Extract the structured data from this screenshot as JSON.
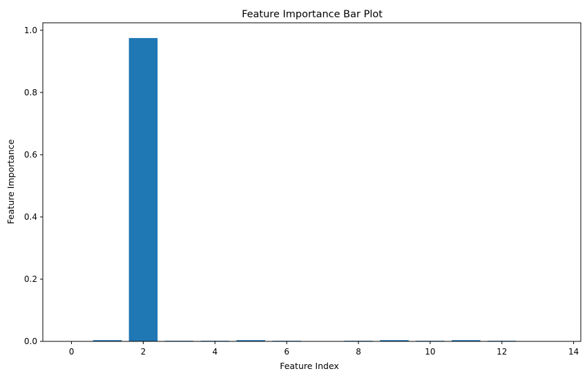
{
  "chart_data": {
    "type": "bar",
    "title": "Feature Importance Bar Plot",
    "xlabel": "Feature Index",
    "ylabel": "Feature Importance",
    "x": [
      0,
      1,
      2,
      3,
      4,
      5,
      6,
      7,
      8,
      9,
      10,
      11,
      12,
      13
    ],
    "values": [
      0.0,
      0.004,
      0.975,
      0.002,
      0.002,
      0.004,
      0.002,
      0.0,
      0.002,
      0.004,
      0.002,
      0.004,
      0.002,
      0.0
    ],
    "xlim": [
      -0.8,
      14.2
    ],
    "ylim": [
      0,
      1.024
    ],
    "xticks": [
      0,
      2,
      4,
      6,
      8,
      10,
      12,
      14
    ],
    "yticks": [
      0.0,
      0.2,
      0.4,
      0.6,
      0.8,
      1.0
    ],
    "ytick_labels": [
      "0.0",
      "0.2",
      "0.4",
      "0.6",
      "0.8",
      "1.0"
    ],
    "bar_color": "#1f77b4",
    "grid": false,
    "legend": "none"
  }
}
